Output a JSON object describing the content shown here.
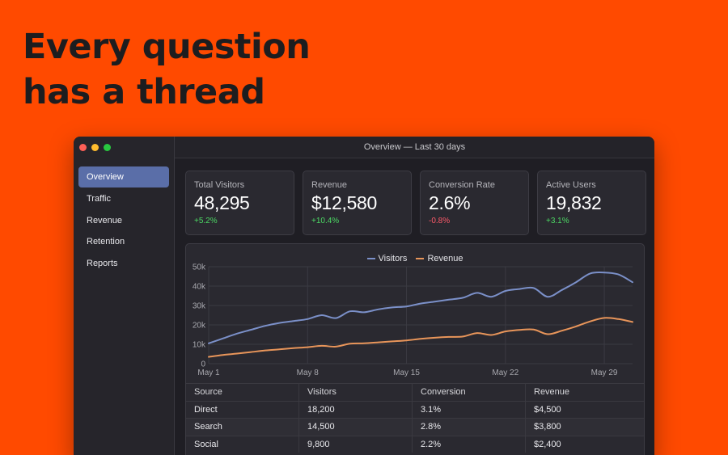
{
  "headline": {
    "line1": "Every question",
    "line2": "has a thread"
  },
  "window": {
    "title": "Overview — Last 30 days"
  },
  "sidebar": {
    "items": [
      {
        "label": "Overview",
        "active": true
      },
      {
        "label": "Traffic"
      },
      {
        "label": "Revenue"
      },
      {
        "label": "Retention"
      },
      {
        "label": "Reports"
      }
    ]
  },
  "kpis": [
    {
      "label": "Total Visitors",
      "value": "48,295",
      "delta": "+5.2%",
      "trend": "up"
    },
    {
      "label": "Revenue",
      "value": "$12,580",
      "delta": "+10.4%",
      "trend": "up"
    },
    {
      "label": "Conversion Rate",
      "value": "2.6%",
      "delta": "-0.8%",
      "trend": "down"
    },
    {
      "label": "Active Users",
      "value": "19,832",
      "delta": "+3.1%",
      "trend": "up"
    }
  ],
  "colors": {
    "visitors": "#7b90c9",
    "revenue": "#e8955a",
    "accent": "#5a6ea8",
    "up": "#4cd964",
    "down": "#ff5a6a"
  },
  "chart_data": {
    "type": "line",
    "x": [
      1,
      2,
      3,
      4,
      5,
      6,
      7,
      8,
      9,
      10,
      11,
      12,
      13,
      14,
      15,
      16,
      17,
      18,
      19,
      20,
      21,
      22,
      23,
      24,
      25,
      26,
      27,
      28,
      29,
      30,
      31
    ],
    "xticks": [
      {
        "x": 1,
        "label": "May 1"
      },
      {
        "x": 8,
        "label": "May 8"
      },
      {
        "x": 15,
        "label": "May 15"
      },
      {
        "x": 22,
        "label": "May 22"
      },
      {
        "x": 29,
        "label": "May 29"
      }
    ],
    "yticks": [
      {
        "y": 0,
        "label": "0"
      },
      {
        "y": 10000,
        "label": "10k"
      },
      {
        "y": 20000,
        "label": "20k"
      },
      {
        "y": 30000,
        "label": "30k"
      },
      {
        "y": 40000,
        "label": "40k"
      },
      {
        "y": 50000,
        "label": "50k"
      }
    ],
    "ylim": [
      0,
      50000
    ],
    "grid": true,
    "legend": "top-center",
    "series": [
      {
        "name": "Visitors",
        "values": [
          10500,
          13000,
          15500,
          17500,
          19500,
          21000,
          22000,
          23000,
          25000,
          23500,
          27000,
          26500,
          28000,
          29000,
          29500,
          31000,
          32000,
          33000,
          34000,
          36500,
          34500,
          37500,
          38500,
          39000,
          34500,
          38000,
          42000,
          46500,
          47000,
          46000,
          42000
        ]
      },
      {
        "name": "Revenue",
        "values": [
          3500,
          4500,
          5200,
          6000,
          6800,
          7400,
          8000,
          8500,
          9200,
          8800,
          10300,
          10500,
          11000,
          11500,
          12000,
          12800,
          13400,
          13800,
          14000,
          15800,
          14800,
          16600,
          17400,
          17600,
          15200,
          17000,
          19200,
          21800,
          23600,
          23000,
          21500
        ]
      }
    ]
  },
  "table": {
    "headers": [
      "Source",
      "Visitors",
      "Conversion",
      "Revenue"
    ],
    "rows": [
      [
        "Direct",
        "18,200",
        "3.1%",
        "$4,500"
      ],
      [
        "Search",
        "14,500",
        "2.8%",
        "$3,800"
      ],
      [
        "Social",
        "9,800",
        "2.2%",
        "$2,400"
      ]
    ]
  }
}
